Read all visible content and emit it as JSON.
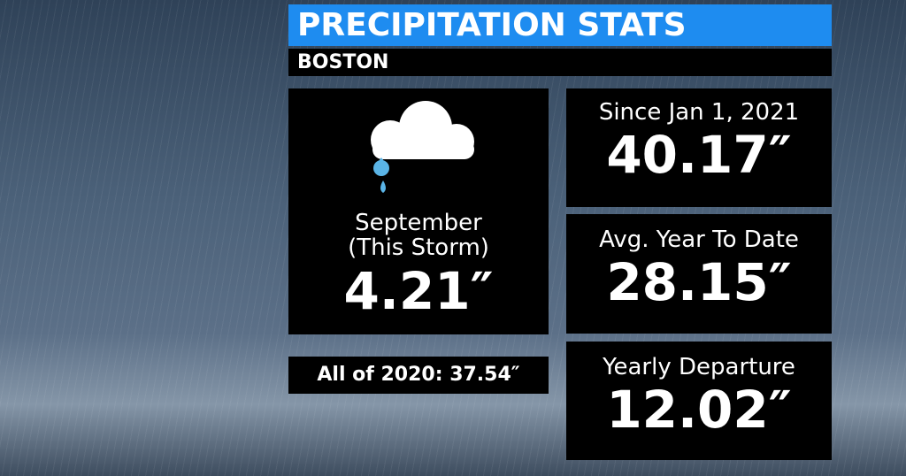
{
  "header": {
    "title": "PRECIPITATION STATS",
    "subtitle": "BOSTON"
  },
  "storm": {
    "month": "September",
    "note": "(This Storm)",
    "amount": "4.21″"
  },
  "year_2020": "All of 2020: 37.54″",
  "stats": [
    {
      "label": "Since Jan 1, 2021",
      "value": "40.17″"
    },
    {
      "label": "Avg. Year To Date",
      "value": "28.15″"
    },
    {
      "label": "Yearly Departure",
      "value": "12.02″"
    }
  ]
}
